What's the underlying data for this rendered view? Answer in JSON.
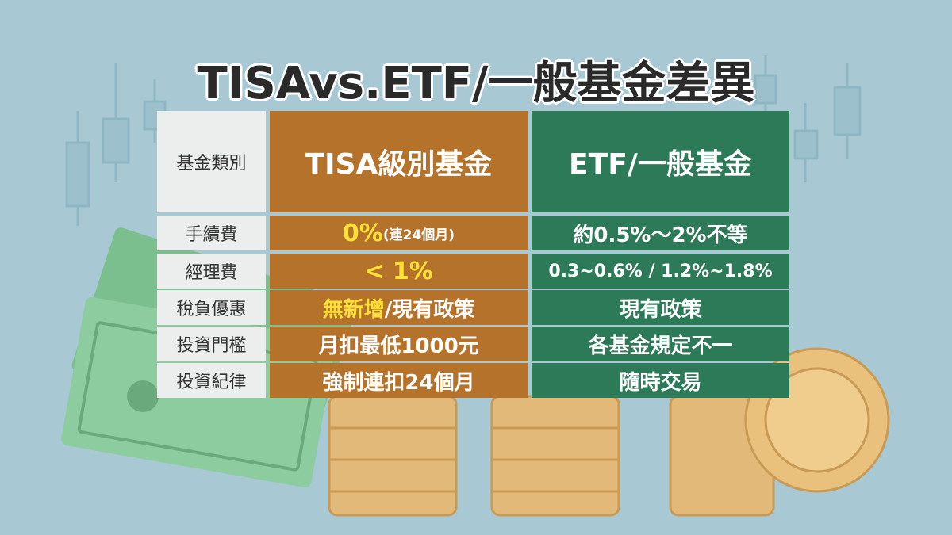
{
  "title": "TISAvs.ETF/一般基金差異",
  "table": {
    "header": [
      "基金類別",
      "TISA級別基金",
      "ETF/一般基金"
    ],
    "rows": [
      [
        "手續費",
        [
          "0%",
          "(連24個月)"
        ],
        "約0.5%～2%不等"
      ],
      [
        "經理費",
        [
          "< 1%"
        ],
        "0.3~0.6% / 1.2%~1.8%"
      ],
      [
        "稅負優惠",
        [
          "無新增",
          "/現有政策"
        ],
        "現有政策"
      ],
      [
        "投資門檻",
        [
          "月扣最低1000元"
        ],
        "各基金規定不一"
      ],
      [
        "投資紀律",
        [
          "強制連扣24個月"
        ],
        "隨時交易"
      ]
    ]
  }
}
